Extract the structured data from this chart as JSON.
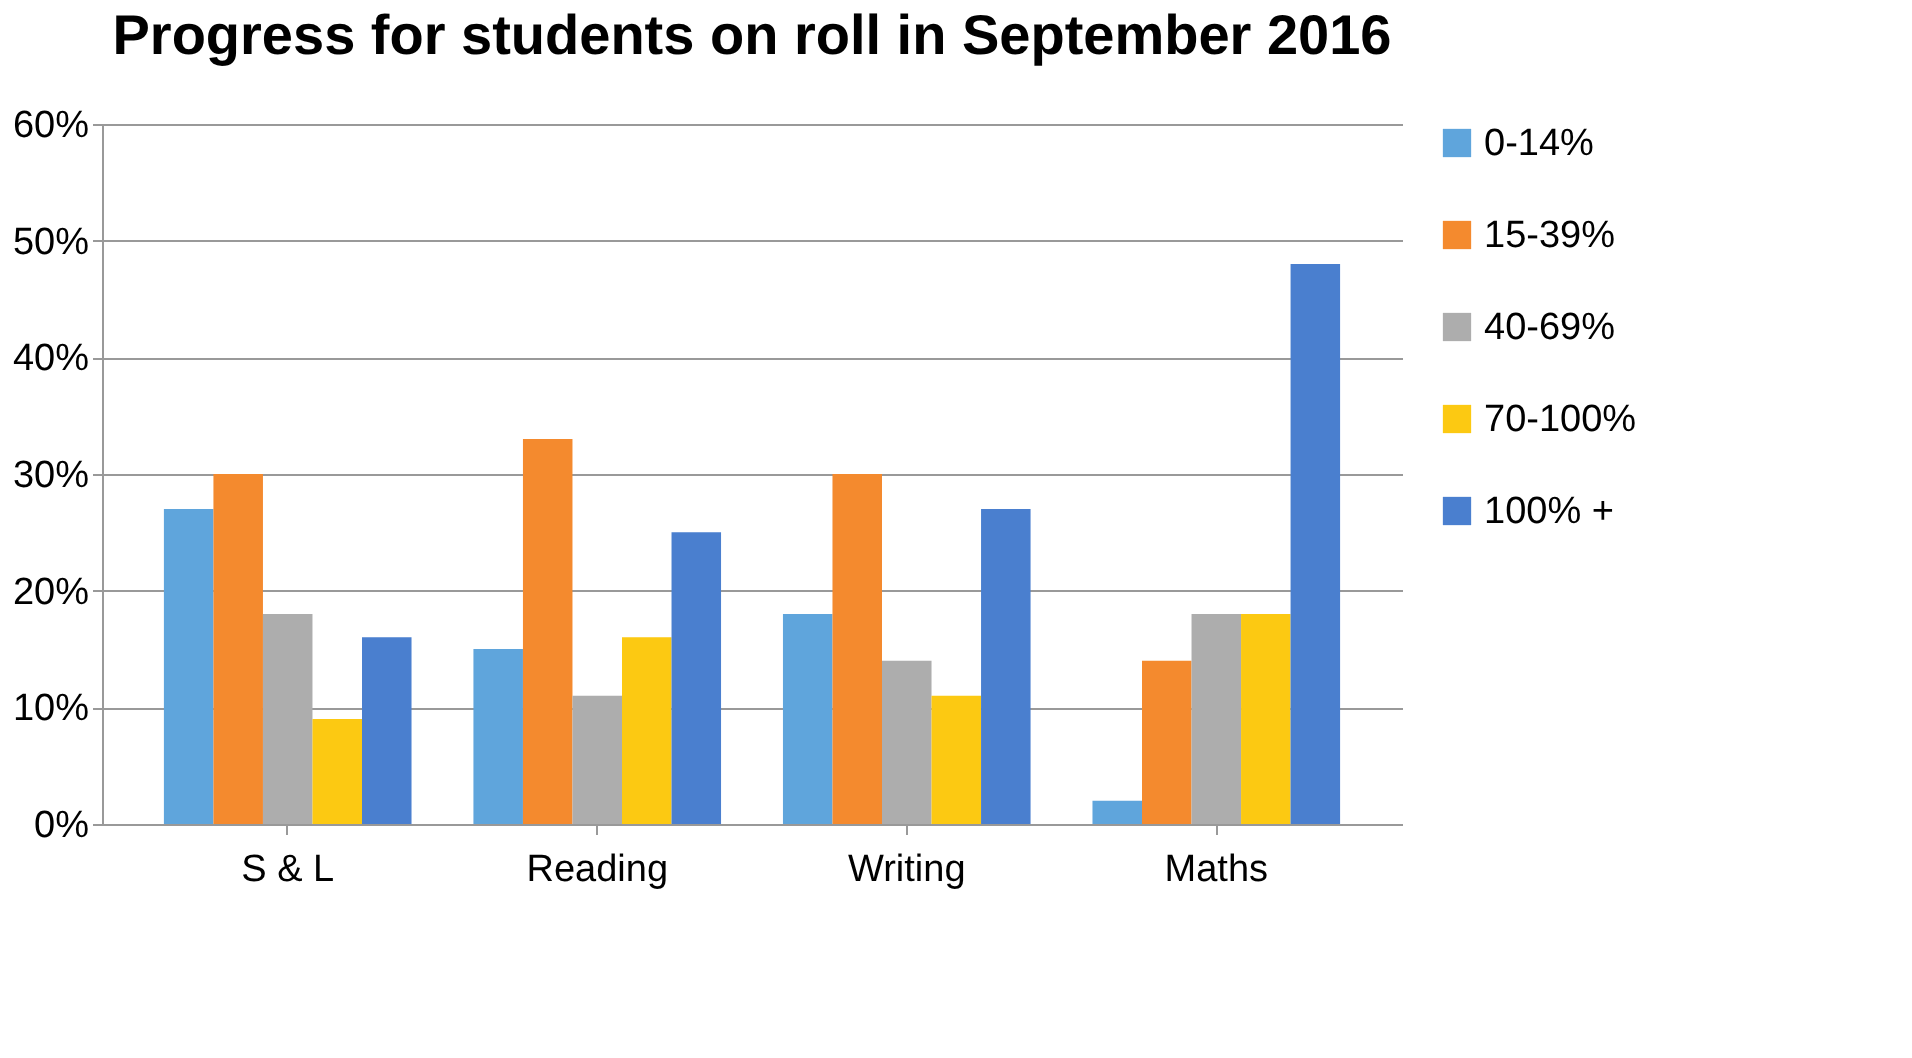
{
  "chart_data": {
    "type": "bar",
    "title": "Progress for students on roll in September 2016",
    "categories": [
      "S & L",
      "Reading",
      "Writing",
      "Maths"
    ],
    "series": [
      {
        "name": "0-14%",
        "color": "#5fa5dc",
        "values": [
          27,
          15,
          18,
          2
        ]
      },
      {
        "name": "15-39%",
        "color": "#f48a2e",
        "values": [
          30,
          33,
          30,
          14
        ]
      },
      {
        "name": "40-69%",
        "color": "#adadad",
        "values": [
          18,
          11,
          14,
          18
        ]
      },
      {
        "name": "70-100%",
        "color": "#fcc912",
        "values": [
          9,
          16,
          11,
          18
        ]
      },
      {
        "name": "100% +",
        "color": "#4a7fcf",
        "values": [
          16,
          25,
          27,
          48
        ]
      }
    ],
    "ylim": [
      0,
      60
    ],
    "yticks": [
      {
        "value": 0,
        "label": "0%"
      },
      {
        "value": 10,
        "label": "10%"
      },
      {
        "value": 20,
        "label": "20%"
      },
      {
        "value": 30,
        "label": "30%"
      },
      {
        "value": 40,
        "label": "40%"
      },
      {
        "value": 50,
        "label": "50%"
      },
      {
        "value": 60,
        "label": "60%"
      }
    ],
    "grid": "y",
    "legend": "right"
  }
}
